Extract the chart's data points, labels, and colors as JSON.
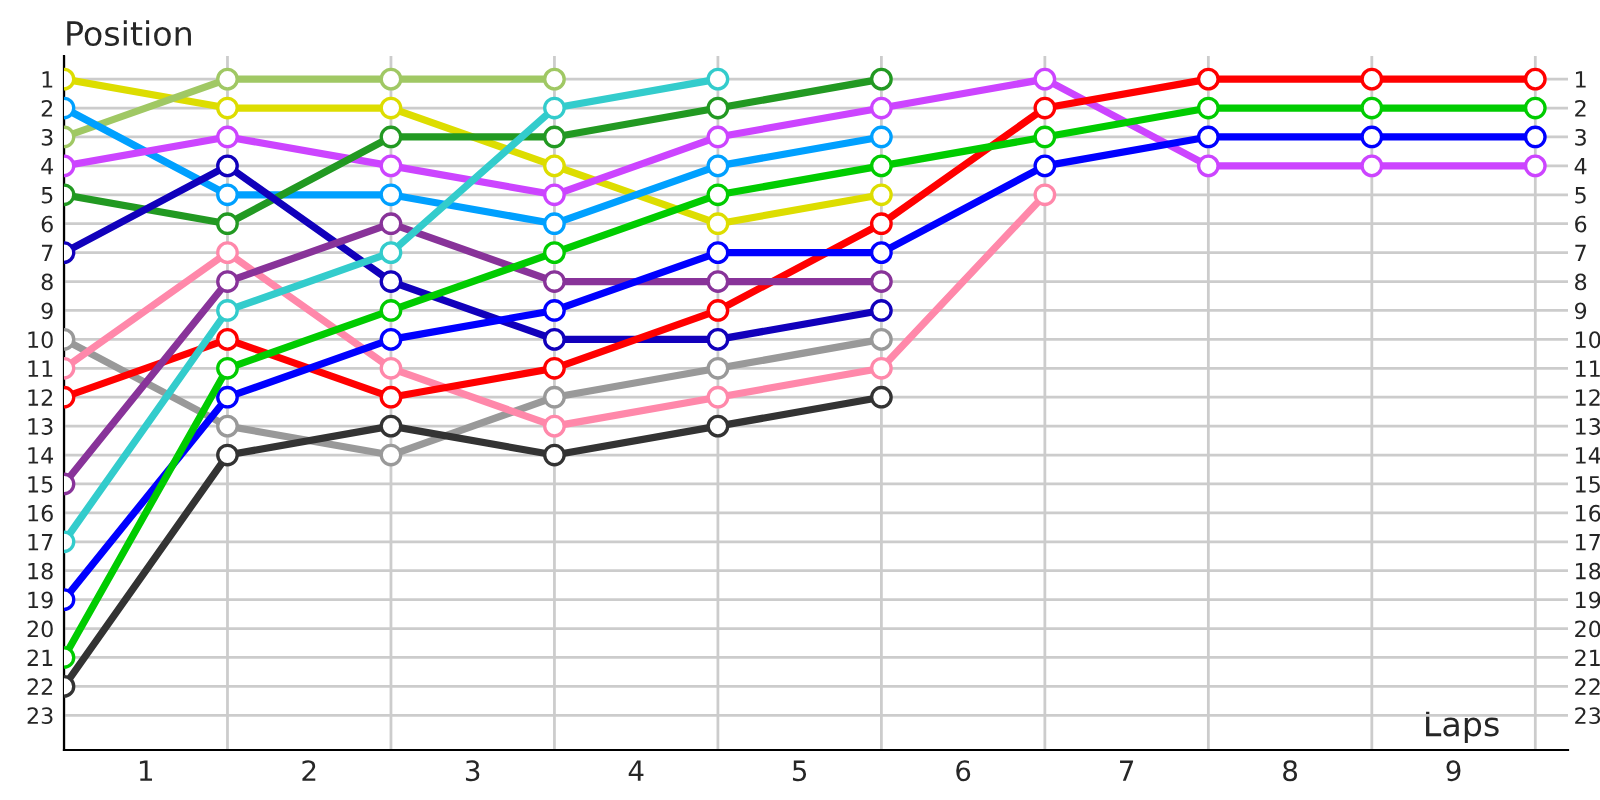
{
  "chart_data": {
    "type": "line",
    "xlabel": "Laps",
    "ylabel": "Position",
    "x": [
      0,
      1,
      2,
      3,
      4,
      5,
      6,
      7,
      8,
      9
    ],
    "series": [
      {
        "color": "#dddd00",
        "values": [
          1,
          2,
          2,
          4,
          6,
          5,
          null,
          null,
          null,
          null
        ]
      },
      {
        "color": "#a0c864",
        "values": [
          3,
          1,
          1,
          1,
          null,
          null,
          null,
          null,
          null,
          null
        ]
      },
      {
        "color": "#00a0ff",
        "values": [
          2,
          5,
          5,
          6,
          4,
          3,
          null,
          null,
          null,
          null
        ]
      },
      {
        "color": "#cc44ff",
        "values": [
          4,
          3,
          4,
          5,
          3,
          2,
          1,
          4,
          4,
          4
        ]
      },
      {
        "color": "#229922",
        "values": [
          5,
          6,
          3,
          3,
          2,
          1,
          null,
          null,
          null,
          null
        ]
      },
      {
        "color": "#1100bb",
        "values": [
          7,
          4,
          8,
          10,
          10,
          9,
          null,
          null,
          null,
          null
        ]
      },
      {
        "color": "#999999",
        "values": [
          10,
          13,
          14,
          12,
          11,
          10,
          null,
          null,
          null,
          null
        ]
      },
      {
        "color": "#ff88aa",
        "values": [
          11,
          7,
          11,
          13,
          12,
          11,
          5,
          null,
          null,
          null
        ]
      },
      {
        "color": "#ff0000",
        "values": [
          12,
          10,
          12,
          11,
          9,
          6,
          2,
          1,
          1,
          1
        ]
      },
      {
        "color": "#883399",
        "values": [
          15,
          8,
          6,
          8,
          8,
          8,
          null,
          null,
          null,
          null
        ]
      },
      {
        "color": "#33cccc",
        "values": [
          17,
          9,
          7,
          2,
          1,
          null,
          null,
          null,
          null,
          null
        ]
      },
      {
        "color": "#0000ff",
        "values": [
          19,
          12,
          10,
          9,
          7,
          7,
          4,
          3,
          3,
          3
        ]
      },
      {
        "color": "#00cc00",
        "values": [
          21,
          11,
          9,
          7,
          5,
          4,
          3,
          2,
          2,
          2
        ]
      },
      {
        "color": "#333333",
        "values": [
          22,
          14,
          13,
          14,
          13,
          12,
          null,
          null,
          null,
          null
        ]
      }
    ],
    "xlim": [
      0,
      9.2
    ],
    "xticks": [
      {
        "value": 0,
        "label": null
      },
      {
        "value": 0.5,
        "label": "1"
      },
      {
        "value": 1,
        "label": null
      },
      {
        "value": 1.5,
        "label": "2"
      },
      {
        "value": 2,
        "label": null
      },
      {
        "value": 2.5,
        "label": "3"
      },
      {
        "value": 3,
        "label": null
      },
      {
        "value": 3.5,
        "label": "4"
      },
      {
        "value": 4,
        "label": null
      },
      {
        "value": 4.5,
        "label": "5"
      },
      {
        "value": 5,
        "label": null
      },
      {
        "value": 5.5,
        "label": "6"
      },
      {
        "value": 6,
        "label": null
      },
      {
        "value": 6.5,
        "label": "7"
      },
      {
        "value": 7,
        "label": null
      },
      {
        "value": 7.5,
        "label": "8"
      },
      {
        "value": 8,
        "label": null
      },
      {
        "value": 8.5,
        "label": "9"
      },
      {
        "value": 9,
        "label": null
      }
    ],
    "ylim": [
      24.2,
      0.2
    ],
    "yticks": [
      1,
      2,
      3,
      4,
      5,
      6,
      7,
      8,
      9,
      10,
      11,
      12,
      13,
      14,
      15,
      16,
      17,
      18,
      19,
      20,
      21,
      22,
      23
    ],
    "y2lim": [
      24.2,
      0.2
    ],
    "y2ticks": [
      1,
      2,
      3,
      4,
      5,
      6,
      7,
      8,
      9,
      10,
      11,
      12,
      13,
      14,
      15,
      16,
      17,
      18,
      19,
      20,
      21,
      22,
      23
    ],
    "grid": true,
    "marker": "circle",
    "line_style": "solid",
    "legend": false
  }
}
